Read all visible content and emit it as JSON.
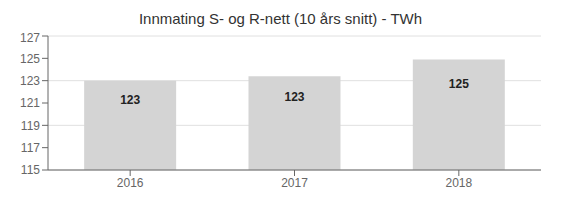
{
  "chart_data": {
    "type": "bar",
    "title": "Innmating S- og R-nett (10 års snitt) - TWh",
    "categories": [
      "2016",
      "2017",
      "2018"
    ],
    "values": [
      123.0,
      123.4,
      124.9
    ],
    "value_labels": [
      "123",
      "123",
      "125"
    ],
    "data_labels": true,
    "color": "#d4d4d4",
    "ylim": [
      115,
      127
    ],
    "yticks": [
      115,
      117,
      119,
      121,
      123,
      125,
      127
    ],
    "grid": true
  }
}
